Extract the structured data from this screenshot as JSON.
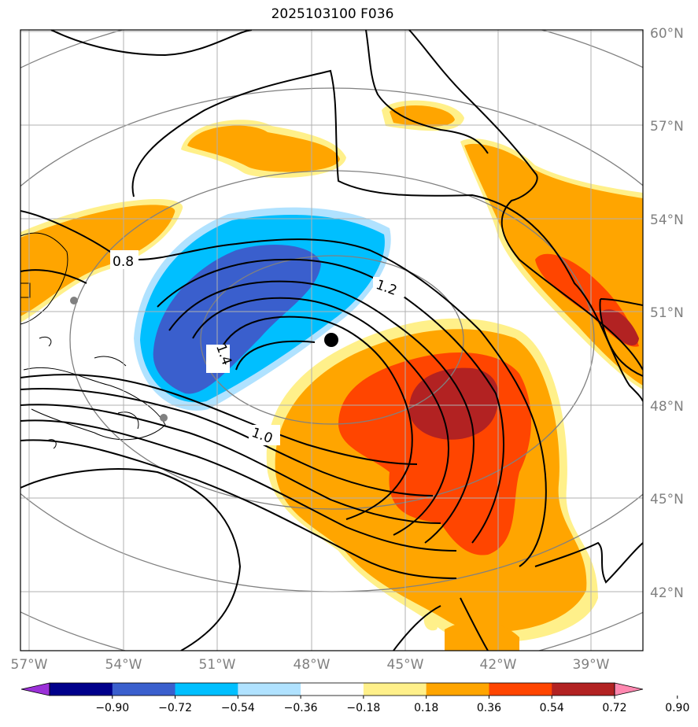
{
  "title": "2025103100 F036",
  "map": {
    "lat_labels": [
      "60°N",
      "57°N",
      "54°N",
      "51°N",
      "48°N",
      "45°N",
      "42°N"
    ],
    "lon_labels": [
      "57°W",
      "54°W",
      "51°W",
      "48°W",
      "45°W",
      "42°W",
      "39°W"
    ],
    "contour_labels": [
      "0.8",
      "1.2",
      "1.4",
      "1.0"
    ],
    "center_marker": "storm-center-dot",
    "colors": {
      "ocean": "#ffffff",
      "contour": "#000000",
      "grid": "#b0b0b0",
      "range_ring": "#808080"
    }
  },
  "colorbar": {
    "colors": [
      "#9b30d8",
      "#00008b",
      "#3a5fcd",
      "#00bfff",
      "#b0e2ff",
      "#ffffff",
      "#fff08a",
      "#ffa500",
      "#ff4500",
      "#b22222",
      "#ff88b0"
    ],
    "ticks": [
      "−0.90",
      "−0.72",
      "−0.54",
      "−0.36",
      "−0.18",
      "0.18",
      "0.36",
      "0.54",
      "0.72",
      "0.90"
    ]
  }
}
